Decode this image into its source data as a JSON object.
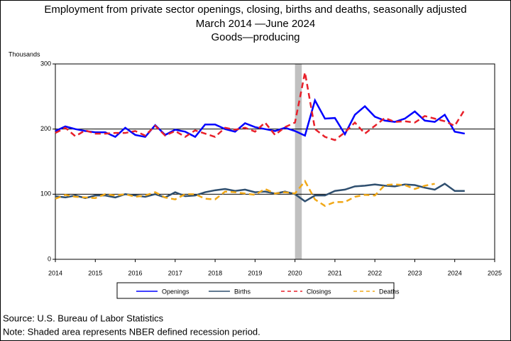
{
  "chart_data": {
    "type": "line",
    "title": [
      "Employment from private sector openings, closing, births and deaths, seasonally adjusted",
      "March 2014 —June 2024",
      "Goods—producing"
    ],
    "y_label": "Thousands",
    "source": "Source: U.S. Bureau of Labor Statistics",
    "note": "Note: Shaded area represents NBER defined recession period.",
    "x": [
      2014,
      2014.25,
      2014.5,
      2014.75,
      2015,
      2015.25,
      2015.5,
      2015.75,
      2016,
      2016.25,
      2016.5,
      2016.75,
      2017,
      2017.25,
      2017.5,
      2017.75,
      2018,
      2018.25,
      2018.5,
      2018.75,
      2019,
      2019.25,
      2019.5,
      2019.75,
      2020,
      2020.25,
      2020.5,
      2020.75,
      2021,
      2021.25,
      2021.5,
      2021.75,
      2022,
      2022.25,
      2022.5,
      2022.75,
      2023,
      2023.25,
      2023.5,
      2023.75,
      2024,
      2024.25
    ],
    "series": [
      {
        "name": "Openings",
        "color": "#0000ff",
        "dashed": false,
        "values": [
          197,
          204,
          200,
          197,
          195,
          195,
          188,
          202,
          191,
          188,
          206,
          191,
          199,
          196,
          188,
          207,
          207,
          200,
          196,
          209,
          203,
          200,
          197,
          202,
          197,
          190,
          244,
          216,
          217,
          192,
          222,
          235,
          219,
          213,
          211,
          216,
          227,
          213,
          211,
          222,
          196,
          193
        ]
      },
      {
        "name": "Births",
        "color": "#2f4f6f",
        "dashed": false,
        "values": [
          97,
          95,
          98,
          94,
          98,
          98,
          95,
          100,
          98,
          96,
          100,
          95,
          103,
          97,
          98,
          103,
          106,
          108,
          105,
          107,
          103,
          104,
          101,
          104,
          100,
          89,
          98,
          98,
          105,
          107,
          112,
          113,
          115,
          113,
          112,
          115,
          114,
          110,
          107,
          116,
          105,
          105
        ]
      },
      {
        "name": "Closings",
        "color": "#e8202a",
        "dashed": true,
        "values": [
          194,
          202,
          189,
          198,
          193,
          193,
          194,
          194,
          197,
          190,
          205,
          190,
          197,
          188,
          198,
          193,
          188,
          202,
          199,
          202,
          196,
          210,
          191,
          203,
          210,
          287,
          200,
          188,
          183,
          195,
          210,
          193,
          205,
          217,
          211,
          212,
          210,
          220,
          216,
          212,
          205,
          230
        ]
      },
      {
        "name": "Deaths",
        "color": "#f0a818",
        "dashed": true,
        "values": [
          93,
          99,
          96,
          95,
          94,
          100,
          98,
          100,
          96,
          98,
          103,
          95,
          92,
          100,
          100,
          93,
          92,
          104,
          103,
          101,
          99,
          108,
          101,
          103,
          101,
          120,
          92,
          82,
          88,
          88,
          96,
          99,
          98,
          114,
          115,
          114,
          108,
          113,
          116,
          null,
          null,
          null
        ]
      }
    ],
    "recession": [
      2020,
      2020.17
    ],
    "xlim": [
      2014,
      2025
    ],
    "xticks": [
      2014,
      2015,
      2016,
      2017,
      2018,
      2019,
      2020,
      2021,
      2022,
      2023,
      2024,
      2025
    ],
    "ylim": [
      0,
      300
    ],
    "yticks": [
      0,
      100,
      200,
      300
    ],
    "grid_lines": [
      100,
      200
    ]
  }
}
